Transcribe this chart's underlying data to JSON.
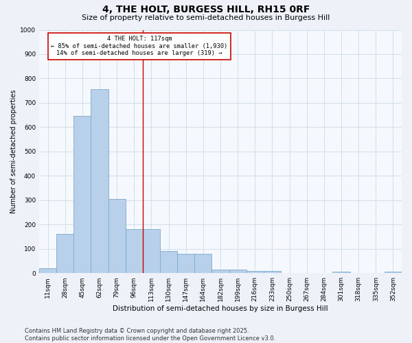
{
  "title": "4, THE HOLT, BURGESS HILL, RH15 0RF",
  "subtitle": "Size of property relative to semi-detached houses in Burgess Hill",
  "xlabel": "Distribution of semi-detached houses by size in Burgess Hill",
  "ylabel": "Number of semi-detached properties",
  "categories": [
    "11sqm",
    "28sqm",
    "45sqm",
    "62sqm",
    "79sqm",
    "96sqm",
    "113sqm",
    "130sqm",
    "147sqm",
    "164sqm",
    "182sqm",
    "199sqm",
    "216sqm",
    "233sqm",
    "250sqm",
    "267sqm",
    "284sqm",
    "301sqm",
    "318sqm",
    "335sqm",
    "352sqm"
  ],
  "bar_heights": [
    20,
    160,
    645,
    755,
    305,
    180,
    180,
    90,
    80,
    80,
    15,
    15,
    10,
    10,
    0,
    0,
    0,
    5,
    0,
    0,
    5
  ],
  "bar_color": "#b8d0ea",
  "bar_edge_color": "#7aaad0",
  "vline_x": 5.5,
  "vline_color": "#cc0000",
  "annotation_text": "4 THE HOLT: 117sqm\n← 85% of semi-detached houses are smaller (1,930)\n14% of semi-detached houses are larger (319) →",
  "annotation_box_color": "#ffffff",
  "annotation_box_edge": "#cc0000",
  "ylim": [
    0,
    1000
  ],
  "yticks": [
    0,
    100,
    200,
    300,
    400,
    500,
    600,
    700,
    800,
    900,
    1000
  ],
  "footer": "Contains HM Land Registry data © Crown copyright and database right 2025.\nContains public sector information licensed under the Open Government Licence v3.0.",
  "bg_color": "#eef2f8",
  "plot_bg_color": "#f5f8fc",
  "title_fontsize": 10,
  "subtitle_fontsize": 8,
  "ylabel_fontsize": 7,
  "xlabel_fontsize": 7.5,
  "tick_fontsize": 6.5,
  "footer_fontsize": 6
}
